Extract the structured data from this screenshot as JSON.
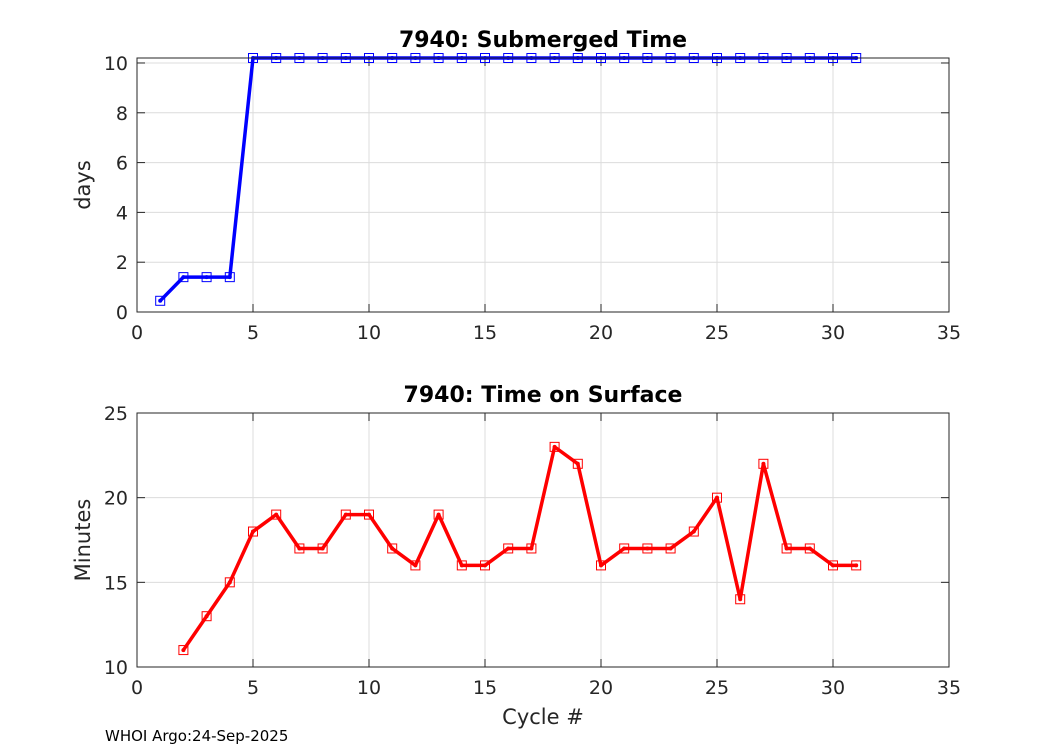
{
  "chart_data": [
    {
      "type": "line",
      "title": "7940: Submerged Time",
      "xlabel": "",
      "ylabel": "days",
      "xlim": [
        0,
        35
      ],
      "ylim": [
        0,
        10.2
      ],
      "xticks": [
        0,
        5,
        10,
        15,
        20,
        25,
        30,
        35
      ],
      "yticks": [
        0,
        2,
        4,
        6,
        8,
        10
      ],
      "grid": true,
      "color": "#0000ff",
      "series": [
        {
          "name": "Submerged Time",
          "x": [
            1,
            2,
            3,
            4,
            5,
            6,
            7,
            8,
            9,
            10,
            11,
            12,
            13,
            14,
            15,
            16,
            17,
            18,
            19,
            20,
            21,
            22,
            23,
            24,
            25,
            26,
            27,
            28,
            29,
            30,
            31
          ],
          "y": [
            0.45,
            1.4,
            1.4,
            1.4,
            10.2,
            10.2,
            10.2,
            10.2,
            10.2,
            10.2,
            10.2,
            10.2,
            10.2,
            10.2,
            10.2,
            10.2,
            10.2,
            10.2,
            10.2,
            10.2,
            10.2,
            10.2,
            10.2,
            10.2,
            10.2,
            10.2,
            10.2,
            10.2,
            10.2,
            10.2,
            10.2
          ]
        }
      ]
    },
    {
      "type": "line",
      "title": "7940: Time on Surface",
      "xlabel": "Cycle #",
      "ylabel": "Minutes",
      "xlim": [
        0,
        35
      ],
      "ylim": [
        10,
        25
      ],
      "xticks": [
        0,
        5,
        10,
        15,
        20,
        25,
        30,
        35
      ],
      "yticks": [
        10,
        15,
        20,
        25
      ],
      "grid": true,
      "color": "#ff0000",
      "series": [
        {
          "name": "Time on Surface",
          "x": [
            2,
            3,
            4,
            5,
            6,
            7,
            8,
            9,
            10,
            11,
            12,
            13,
            14,
            15,
            16,
            17,
            18,
            19,
            20,
            21,
            22,
            23,
            24,
            25,
            26,
            27,
            28,
            29,
            30,
            31
          ],
          "y": [
            11,
            13,
            15,
            18,
            19,
            17,
            17,
            19,
            19,
            17,
            16,
            19,
            16,
            16,
            17,
            17,
            23,
            22,
            16,
            17,
            17,
            17,
            18,
            20,
            14,
            22,
            17,
            17,
            16,
            16
          ]
        }
      ]
    }
  ],
  "footer": "WHOI Argo:24-Sep-2025"
}
